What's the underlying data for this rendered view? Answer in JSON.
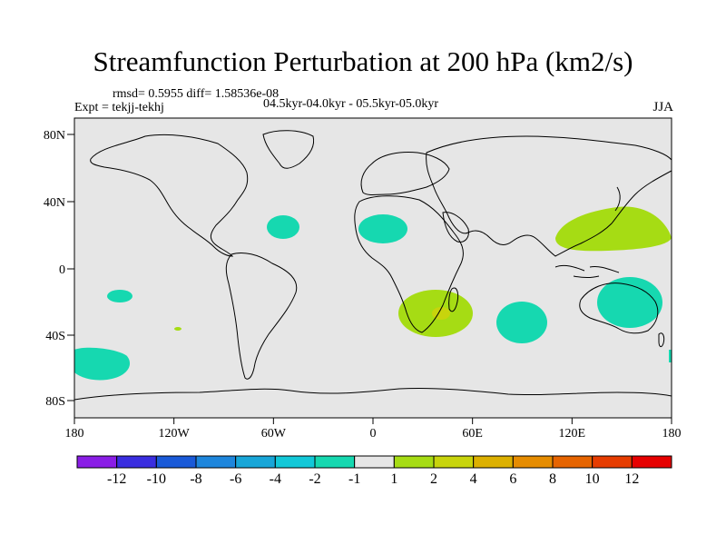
{
  "title": "Streamfunction Perturbation at 200 hPa (km2/s)",
  "stats": {
    "rmsd_line": "rmsd= 0.5955 diff= 1.58536e-08",
    "expt_line": "Expt = tekjj-tekhj",
    "period_line": "04.5kyr-04.0kyr - 05.5kyr-05.0kyr"
  },
  "season": "JJA",
  "lat_labels": [
    "80N",
    "40N",
    "0",
    "40S",
    "80S"
  ],
  "lon_labels": [
    "180",
    "120W",
    "60W",
    "0",
    "60E",
    "120E",
    "180"
  ],
  "colorbar": {
    "labels": [
      "-12",
      "-10",
      "-8",
      "-6",
      "-4",
      "-2",
      "-1",
      "1",
      "2",
      "4",
      "6",
      "8",
      "10",
      "12"
    ],
    "colors": [
      "#8a1ee6",
      "#3a2ee0",
      "#1a5ad8",
      "#1e86dc",
      "#18a6d8",
      "#12c8d8",
      "#16d8b0",
      "#e6e6e6",
      "#a6dc14",
      "#c8d40c",
      "#dcb000",
      "#e68c00",
      "#e66400",
      "#e63c00",
      "#e60000"
    ]
  },
  "colors": {
    "background": "#e6e6e6",
    "coast": "#000000",
    "neg_small": "#16d8b0",
    "pos_small": "#a6dc14",
    "pos_mid": "#c8d40c"
  }
}
